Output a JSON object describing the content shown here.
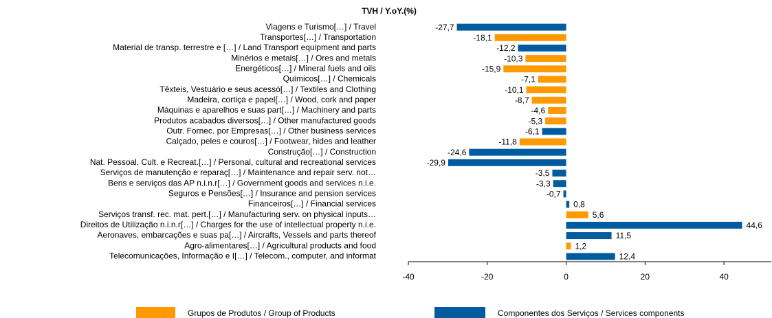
{
  "chart_data": {
    "type": "bar",
    "orientation": "horizontal",
    "title": "TVH / Y.oY.(%)",
    "categories": [
      "Viagens e Turismo[…] / Travel",
      "Transportes[…] / Transportation",
      "Material de transp. terrestre e […] / Land Transport equipment and parts",
      "Minérios e metais[…] / Ores and metals",
      "Energéticos[…] / Mineral fuels and oils",
      "Químicos[…] / Chemicals",
      "Têxteis, Vestuário e seus acessó[…] / Textiles and Clothing",
      "Madeira, cortiça e papel[…] / Wood, cork and paper",
      "Máquinas e aparelhos e suas part[…] / Machinery and parts",
      "Produtos acabados diversos[…] / Other manufactured goods",
      "Outr. Fornec. por Empresas[…] / Other business services",
      "Calçado, peles e couros[…] / Footwear, hides and leather",
      "Construção[…] / Construction",
      "Nat. Pessoal, Cult. e Recreat.[…] / Personal, cultural and recreational services",
      "Serviços de manutenção e reparaç[…] / Maintenance and repair serv. not…",
      "Bens e serviços das AP n.i.n.r[…] / Government goods and services n.i.e.",
      "Seguros e Pensões[…] / Insurance and pension services",
      "Financeiros[…] / Financial services",
      "Serviços transf. rec. mat. pert.[…] / Manufacturing serv. on physical inputs…",
      "Direitos de Utilização n.i.n.r[…] / Charges for the use of intellectual property n.i.e.",
      "Aeronaves, embarcações e suas pa[…] / Aircrafts, Vessels and parts thereof",
      "Agro-alimentares[…] / Agricultural products and food",
      "Telecomunicações, Informação e I[…] / Telecom., computer, and informat"
    ],
    "series": [
      {
        "name": "Grupos de Produtos / Group of Products",
        "color": "#ff9900",
        "values": [
          null,
          -18.1,
          null,
          -10.3,
          -15.9,
          -7.1,
          -10.1,
          -8.7,
          -4.6,
          -5.3,
          null,
          -11.8,
          null,
          null,
          null,
          null,
          null,
          null,
          5.6,
          null,
          null,
          1.2,
          null
        ],
        "value_labels": [
          null,
          "-18,1",
          null,
          "-10,3",
          "-15,9",
          "-7,1",
          "-10,1",
          "-8,7",
          "-4,6",
          "-5,3",
          null,
          "-11,8",
          null,
          null,
          null,
          null,
          null,
          null,
          "5,6",
          null,
          null,
          "1,2",
          null
        ]
      },
      {
        "name": "Componentes dos Serviços / Services components",
        "color": "#005b9f",
        "values": [
          -27.7,
          null,
          -12.2,
          null,
          null,
          null,
          null,
          null,
          null,
          null,
          -6.1,
          null,
          -24.6,
          -29.9,
          -3.5,
          -3.3,
          -0.7,
          0.8,
          null,
          44.6,
          11.5,
          null,
          12.4
        ],
        "value_labels": [
          "-27,7",
          null,
          "-12,2",
          null,
          null,
          null,
          null,
          null,
          null,
          null,
          "-6,1",
          null,
          "-24,6",
          "-29,9",
          "-3,5",
          "-3,3",
          "-0,7",
          "0,8",
          null,
          "44,6",
          "11,5",
          null,
          "12,4"
        ]
      }
    ],
    "xlim": [
      -40,
      52
    ],
    "xticks": [
      -40,
      -20,
      0,
      20,
      40
    ]
  }
}
